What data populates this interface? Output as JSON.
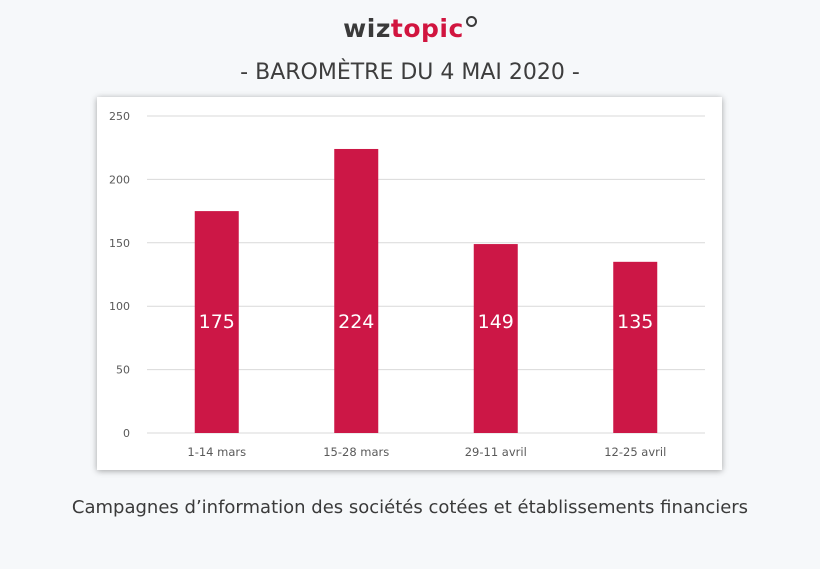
{
  "brand": {
    "logo_text_dark": "wiz",
    "logo_text_accent": "topic"
  },
  "header": {
    "subtitle": "- BAROMÈTRE DU 4 MAI 2020 -"
  },
  "footer": {
    "caption": "Campagnes d’information des sociétés cotées et établissements financiers"
  },
  "colors": {
    "bar": "#cc1746",
    "grid": "#d9d9d9",
    "tick_text": "#595959"
  },
  "chart_data": {
    "type": "bar",
    "title": "",
    "xlabel": "",
    "ylabel": "",
    "categories": [
      "1-14 mars",
      "15-28 mars",
      "29-11 avril",
      "12-25 avril"
    ],
    "values": [
      175,
      224,
      149,
      135
    ],
    "ylim": [
      0,
      250
    ],
    "yticks": [
      0,
      50,
      100,
      150,
      200,
      250
    ],
    "grid": true,
    "legend": "none"
  }
}
